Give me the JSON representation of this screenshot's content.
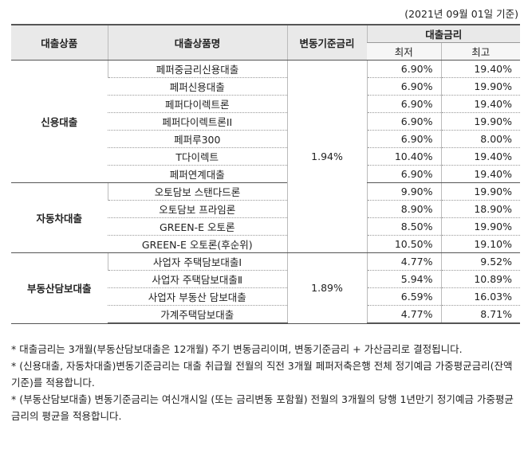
{
  "header": {
    "date": "(2021년 09월 01일 기준)"
  },
  "table": {
    "columns": [
      "대출상품",
      "대출상품명",
      "변동기준금리",
      "대출금리"
    ],
    "subcolumns": [
      "최저",
      "최고"
    ],
    "groups": [
      {
        "name": "신용대출",
        "rows": [
          [
            "페퍼중금리신용대출",
            "6.90%",
            "19.40%"
          ],
          [
            "페퍼신용대출",
            "6.90%",
            "19.90%"
          ],
          [
            "페퍼다이렉트론",
            "6.90%",
            "19.40%"
          ],
          [
            "페퍼다이렉트론II",
            "6.90%",
            "19.90%"
          ],
          [
            "페퍼루300",
            "6.90%",
            "8.00%"
          ],
          [
            "T다이렉트",
            "10.40%",
            "19.40%"
          ],
          [
            "페퍼연계대출",
            "6.90%",
            "19.40%"
          ]
        ]
      },
      {
        "name": "자동차대출",
        "rows": [
          [
            "오토담보 스탠다드론",
            "9.90%",
            "19.90%"
          ],
          [
            "오토담보 프라임론",
            "8.90%",
            "18.90%"
          ],
          [
            "GREEN-E 오토론",
            "8.50%",
            "19.90%"
          ],
          [
            "GREEN-E 오토론(후순위)",
            "10.50%",
            "19.10%"
          ]
        ]
      },
      {
        "name": "부동산담보대출",
        "rows": [
          [
            "사업자 주택담보대출Ⅰ",
            "4.77%",
            "9.52%"
          ],
          [
            "사업자 주택담보대출Ⅱ",
            "5.94%",
            "10.89%"
          ],
          [
            "사업자 부동산 담보대출",
            "6.59%",
            "16.03%"
          ],
          [
            "가계주택담보대출",
            "4.77%",
            "8.71%"
          ]
        ]
      }
    ],
    "base_rates": [
      "1.94%",
      "1.89%"
    ]
  },
  "notes": [
    "* 대출금리는 3개월(부동산담보대출은 12개월) 주기 변동금리이며, 변동기준금리 + 가산금리로 결정됩니다.",
    "* (신용대출, 자동차대출)변동기준금리는 대출 취급월 전월의 직전 3개월 페퍼저축은행 전체 정기예금 가중평균금리(잔액기준)를 적용합니다.",
    "* (부동산담보대출) 변동기준금리는 여신개시일 (또는 금리변동 포함월) 전월의 3개월의 당행 1년만기 정기예금 가중평균금리의 평균을 적용합니다."
  ]
}
